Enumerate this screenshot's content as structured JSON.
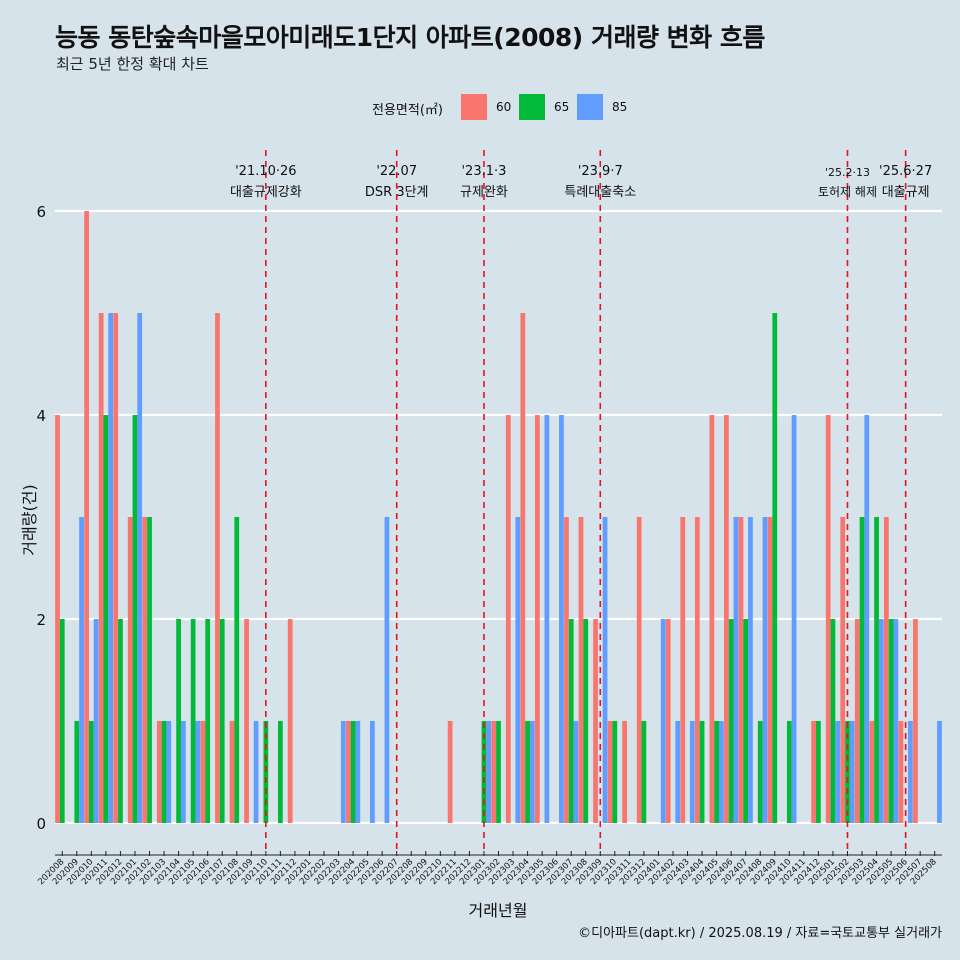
{
  "title": "능동 동탄숲속마을모아미래도1단지 아파트(2008) 거래량 변화 흐름",
  "subtitle": "최근 5년 한정 확대 차트",
  "caption": "©디아파트(dapt.kr) / 2025.08.19 / 자료=국토교통부 실거래가",
  "legend": {
    "title": "전용면적(㎡)",
    "items": [
      {
        "label": "60",
        "color": "#f8766d"
      },
      {
        "label": "65",
        "color": "#00ba38"
      },
      {
        "label": "85",
        "color": "#619cff"
      }
    ]
  },
  "chart_data": {
    "type": "bar",
    "xlabel": "거래년월",
    "ylabel": "거래량(건)",
    "ylim": [
      0,
      6
    ],
    "yticks": [
      0,
      2,
      4,
      6
    ],
    "grid": true,
    "legend_position": "top",
    "categories": [
      "202008",
      "202009",
      "202010",
      "202011",
      "202012",
      "202101",
      "202102",
      "202103",
      "202104",
      "202105",
      "202106",
      "202107",
      "202108",
      "202109",
      "202110",
      "202111",
      "202112",
      "202201",
      "202202",
      "202203",
      "202204",
      "202205",
      "202206",
      "202207",
      "202208",
      "202209",
      "202210",
      "202211",
      "202212",
      "202301",
      "202302",
      "202303",
      "202304",
      "202305",
      "202306",
      "202307",
      "202308",
      "202309",
      "202310",
      "202311",
      "202312",
      "202401",
      "202402",
      "202403",
      "202404",
      "202405",
      "202406",
      "202407",
      "202408",
      "202409",
      "202410",
      "202411",
      "202412",
      "202501",
      "202502",
      "202503",
      "202504",
      "202505",
      "202506",
      "202507",
      "202508"
    ],
    "series": [
      {
        "name": "60",
        "color": "#f8766d",
        "values": [
          4,
          0,
          6,
          5,
          5,
          3,
          3,
          1,
          0,
          0,
          1,
          5,
          1,
          2,
          0,
          0,
          2,
          0,
          0,
          0,
          1,
          0,
          0,
          0,
          0,
          0,
          0,
          1,
          0,
          0,
          1,
          4,
          5,
          4,
          0,
          3,
          3,
          2,
          1,
          1,
          3,
          0,
          2,
          3,
          3,
          4,
          4,
          3,
          0,
          3,
          0,
          0,
          1,
          4,
          3,
          2,
          1,
          3,
          1,
          2,
          0
        ]
      },
      {
        "name": "65",
        "color": "#00ba38",
        "values": [
          2,
          1,
          1,
          4,
          2,
          4,
          3,
          1,
          2,
          2,
          2,
          2,
          3,
          0,
          1,
          1,
          0,
          0,
          0,
          0,
          1,
          0,
          0,
          0,
          0,
          0,
          0,
          0,
          0,
          1,
          1,
          0,
          1,
          0,
          0,
          2,
          2,
          0,
          1,
          0,
          1,
          0,
          0,
          0,
          1,
          1,
          2,
          2,
          1,
          5,
          1,
          0,
          1,
          2,
          1,
          3,
          3,
          2,
          0,
          0,
          0
        ]
      },
      {
        "name": "85",
        "color": "#619cff",
        "values": [
          0,
          3,
          2,
          5,
          0,
          5,
          0,
          1,
          1,
          1,
          0,
          0,
          0,
          1,
          0,
          0,
          0,
          0,
          0,
          1,
          1,
          1,
          3,
          0,
          0,
          0,
          0,
          0,
          0,
          1,
          0,
          3,
          1,
          4,
          4,
          1,
          0,
          3,
          0,
          0,
          0,
          2,
          1,
          1,
          0,
          1,
          3,
          3,
          3,
          0,
          4,
          0,
          0,
          1,
          1,
          4,
          2,
          2,
          1,
          0,
          1
        ]
      }
    ],
    "annotations": [
      {
        "category": "202110",
        "date": "'21.10·26",
        "label": "대출규제강화"
      },
      {
        "category": "202207",
        "date": "'22.07",
        "label": "DSR 3단계"
      },
      {
        "category": "202301",
        "date": "'23.1·3",
        "label": "규제완화"
      },
      {
        "category": "202309",
        "date": "'23.9·7",
        "label": "특례대출축소"
      },
      {
        "category": "202502",
        "date": "'25.2·13",
        "label": "토허제 해제"
      },
      {
        "category": "202506",
        "date": "'25.6·27",
        "label": "대출규제"
      }
    ]
  }
}
